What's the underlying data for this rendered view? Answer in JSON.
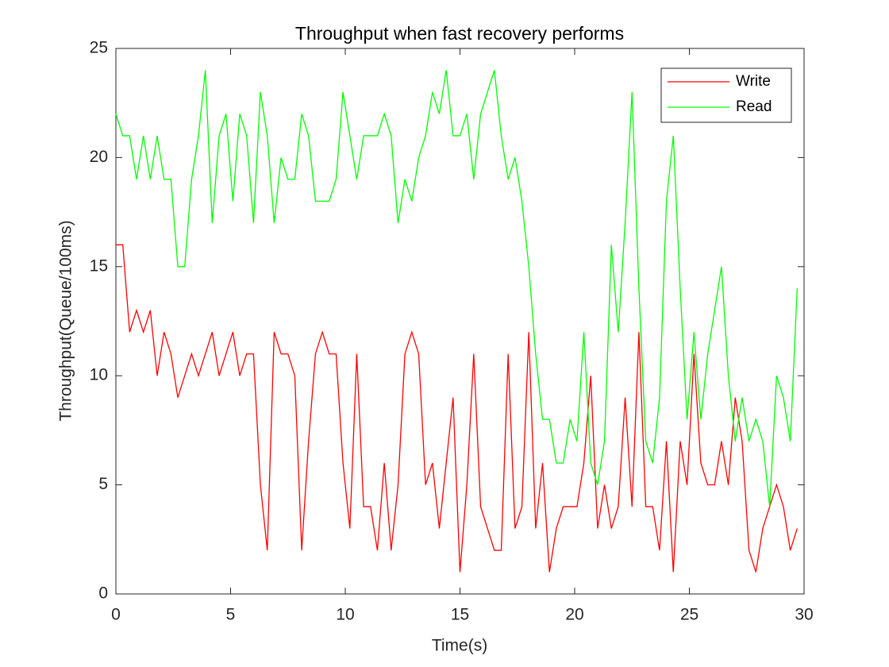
{
  "chart_data": {
    "type": "line",
    "title": "Throughput when fast recovery performs",
    "x_label": "Time(s)",
    "y_label": "Throughput(Queue/100ms)",
    "x": [
      0,
      0.3,
      0.6,
      0.9,
      1.2,
      1.5,
      1.8,
      2.1,
      2.4,
      2.7,
      3,
      3.3,
      3.6,
      3.9,
      4.2,
      4.5,
      4.8,
      5.1,
      5.4,
      5.7,
      6,
      6.3,
      6.6,
      6.9,
      7.2,
      7.5,
      7.8,
      8.1,
      8.4,
      8.7,
      9,
      9.3,
      9.6,
      9.9,
      10.2,
      10.5,
      10.8,
      11.1,
      11.4,
      11.7,
      12,
      12.3,
      12.6,
      12.9,
      13.2,
      13.5,
      13.8,
      14.1,
      14.4,
      14.7,
      15,
      15.3,
      15.6,
      15.9,
      16.2,
      16.5,
      16.8,
      17.1,
      17.4,
      17.7,
      18,
      18.3,
      18.6,
      18.9,
      19.2,
      19.5,
      19.8,
      20.1,
      20.4,
      20.7,
      21,
      21.3,
      21.6,
      21.9,
      22.2,
      22.5,
      22.8,
      23.1,
      23.4,
      23.7,
      24,
      24.3,
      24.6,
      24.9,
      25.2,
      25.5,
      25.8,
      26.1,
      26.4,
      26.7,
      27,
      27.3,
      27.6,
      27.9,
      28.2,
      28.5,
      28.8,
      29.1,
      29.4,
      29.7
    ],
    "series": [
      {
        "name": "Write",
        "color": "#ff0000",
        "values": [
          16,
          16,
          12,
          13,
          12,
          13,
          10,
          12,
          11,
          9,
          10,
          11,
          10,
          11,
          12,
          10,
          11,
          12,
          10,
          11,
          11,
          5,
          2,
          12,
          11,
          11,
          10,
          2,
          7,
          11,
          12,
          11,
          11,
          6,
          3,
          11,
          4,
          4,
          2,
          6,
          2,
          5,
          11,
          12,
          11,
          5,
          6,
          3,
          6,
          9,
          1,
          5,
          11,
          4,
          3,
          2,
          2,
          11,
          3,
          4,
          12,
          3,
          6,
          1,
          3,
          4,
          4,
          4,
          6,
          10,
          3,
          5,
          3,
          4,
          9,
          4,
          12,
          4,
          4,
          2,
          7,
          1,
          7,
          5,
          11,
          6,
          5,
          5,
          7,
          5,
          9,
          7,
          2,
          1,
          3,
          4,
          5,
          4,
          2,
          3
        ]
      },
      {
        "name": "Read",
        "color": "#00ff00",
        "values": [
          22,
          21,
          21,
          19,
          21,
          19,
          21,
          19,
          19,
          15,
          15,
          19,
          21,
          24,
          17,
          21,
          22,
          18,
          22,
          21,
          17,
          23,
          21,
          17,
          20,
          19,
          19,
          22,
          21,
          18,
          18,
          18,
          19,
          23,
          21,
          19,
          21,
          21,
          21,
          22,
          21,
          17,
          19,
          18,
          20,
          21,
          23,
          22,
          24,
          21,
          21,
          22,
          19,
          22,
          23,
          24,
          21,
          19,
          20,
          18,
          15,
          11,
          8,
          8,
          6,
          6,
          8,
          7,
          12,
          6,
          5,
          7,
          16,
          12,
          17,
          23,
          14,
          7,
          6,
          9,
          18,
          21,
          14,
          8,
          12,
          8,
          11,
          13,
          15,
          10,
          7,
          9,
          7,
          8,
          7,
          4,
          10,
          9,
          7,
          14
        ]
      }
    ],
    "xlim": [
      0,
      30
    ],
    "xticks": [
      0,
      5,
      10,
      15,
      20,
      25,
      30
    ],
    "ylim": [
      0,
      25
    ],
    "yticks": [
      0,
      5,
      10,
      15,
      20,
      25
    ],
    "grid": false,
    "legend": "top-right"
  }
}
